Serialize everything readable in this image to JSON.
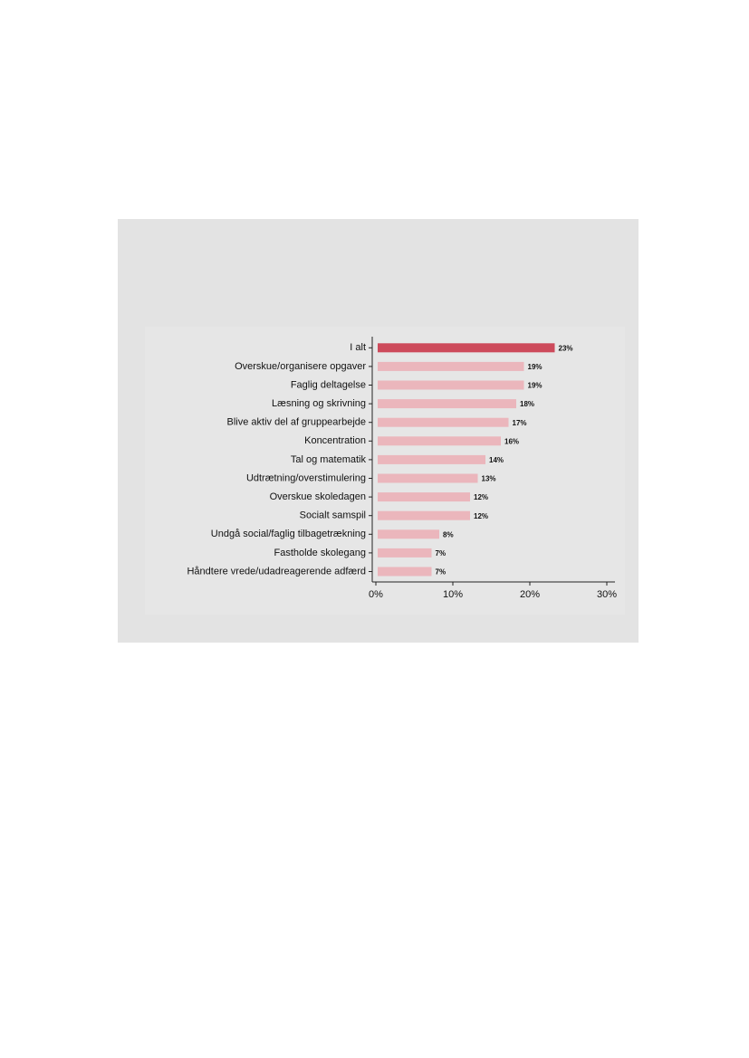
{
  "chart_data": {
    "type": "bar",
    "orientation": "horizontal",
    "categories": [
      "I alt",
      "Overskue/organisere opgaver",
      "Faglig deltagelse",
      "Læsning og skrivning",
      "Blive aktiv del af gruppearbejde",
      "Koncentration",
      "Tal og matematik",
      "Udtrætning/overstimulering",
      "Overskue skoledagen",
      "Socialt samspil",
      "Undgå social/faglig tilbagetrækning",
      "Fastholde skolegang",
      "Håndtere vrede/udadreagerende adfærd"
    ],
    "values": [
      23,
      19,
      19,
      18,
      17,
      16,
      14,
      13,
      12,
      12,
      8,
      7,
      7
    ],
    "value_labels": [
      "23%",
      "19%",
      "19%",
      "18%",
      "17%",
      "16%",
      "14%",
      "13%",
      "12%",
      "12%",
      "8%",
      "7%",
      "7%"
    ],
    "colors": [
      "#cd4a5b",
      "#ebb6bc",
      "#ebb6bc",
      "#ebb6bc",
      "#ebb6bc",
      "#ebb6bc",
      "#ebb6bc",
      "#ebb6bc",
      "#ebb6bc",
      "#ebb6bc",
      "#ebb6bc",
      "#ebb6bc",
      "#ebb6bc"
    ],
    "xlim": [
      0,
      31
    ],
    "xticks": [
      {
        "value": 0,
        "label": "0%"
      },
      {
        "value": 10,
        "label": "10%"
      },
      {
        "value": 20,
        "label": "20%"
      },
      {
        "value": 30,
        "label": "30%"
      }
    ],
    "grid": false
  }
}
